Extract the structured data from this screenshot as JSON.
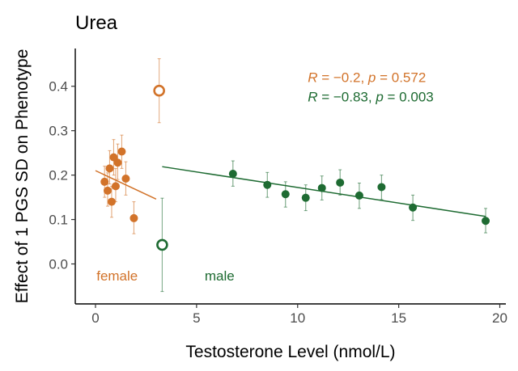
{
  "chart_data": {
    "type": "scatter",
    "title": "Urea",
    "xlabel": "Testosterone Level (nmol/L)",
    "ylabel": "Effect of 1 PGS SD on Phenotype",
    "xlim": [
      -1,
      20.3
    ],
    "ylim": [
      -0.09,
      0.485
    ],
    "x_ticks": [
      0,
      5,
      10,
      15,
      20
    ],
    "x_tick_labels": [
      "0",
      "5",
      "10",
      "15",
      "20"
    ],
    "y_ticks": [
      0.0,
      0.1,
      0.2,
      0.3,
      0.4
    ],
    "y_tick_labels": [
      "0.0",
      "0.1",
      "0.2",
      "0.3",
      "0.4"
    ],
    "grid": false,
    "series": [
      {
        "name": "female",
        "color": "#D2732A",
        "points": [
          {
            "x": 0.45,
            "y": 0.185,
            "lo": 0.15,
            "hi": 0.22
          },
          {
            "x": 0.6,
            "y": 0.165,
            "lo": 0.13,
            "hi": 0.205
          },
          {
            "x": 0.7,
            "y": 0.215,
            "lo": 0.18,
            "hi": 0.255
          },
          {
            "x": 0.8,
            "y": 0.14,
            "lo": 0.105,
            "hi": 0.175
          },
          {
            "x": 0.9,
            "y": 0.24,
            "lo": 0.2,
            "hi": 0.28
          },
          {
            "x": 1.0,
            "y": 0.175,
            "lo": 0.14,
            "hi": 0.215
          },
          {
            "x": 1.1,
            "y": 0.228,
            "lo": 0.19,
            "hi": 0.27
          },
          {
            "x": 1.3,
            "y": 0.253,
            "lo": 0.215,
            "hi": 0.29
          },
          {
            "x": 1.5,
            "y": 0.192,
            "lo": 0.155,
            "hi": 0.23
          },
          {
            "x": 1.9,
            "y": 0.103,
            "lo": 0.068,
            "hi": 0.14
          },
          {
            "x": 3.15,
            "y": 0.39,
            "lo": 0.318,
            "hi": 0.462,
            "hollow": true
          }
        ],
        "fit": {
          "x": [
            0,
            3.0
          ],
          "y": [
            0.21,
            0.146
          ]
        },
        "label": "female",
        "annotation": {
          "r": "−0.2",
          "p": "0.572"
        }
      },
      {
        "name": "male",
        "color": "#1E6B32",
        "points": [
          {
            "x": 3.3,
            "y": 0.043,
            "lo": -0.062,
            "hi": 0.148,
            "hollow": true
          },
          {
            "x": 6.8,
            "y": 0.203,
            "lo": 0.175,
            "hi": 0.232
          },
          {
            "x": 8.5,
            "y": 0.178,
            "lo": 0.15,
            "hi": 0.206
          },
          {
            "x": 9.4,
            "y": 0.157,
            "lo": 0.128,
            "hi": 0.185
          },
          {
            "x": 10.4,
            "y": 0.149,
            "lo": 0.12,
            "hi": 0.178
          },
          {
            "x": 11.2,
            "y": 0.171,
            "lo": 0.144,
            "hi": 0.198
          },
          {
            "x": 12.1,
            "y": 0.183,
            "lo": 0.155,
            "hi": 0.212
          },
          {
            "x": 13.05,
            "y": 0.154,
            "lo": 0.125,
            "hi": 0.182
          },
          {
            "x": 14.15,
            "y": 0.173,
            "lo": 0.145,
            "hi": 0.2
          },
          {
            "x": 15.7,
            "y": 0.127,
            "lo": 0.098,
            "hi": 0.155
          },
          {
            "x": 19.3,
            "y": 0.097,
            "lo": 0.07,
            "hi": 0.125
          }
        ],
        "fit": {
          "x": [
            3.3,
            19.3
          ],
          "y": [
            0.219,
            0.107
          ]
        },
        "label": "male",
        "annotation": {
          "r": "−0.83",
          "p": "0.003"
        }
      }
    ]
  },
  "annotations": {
    "r_symbol": "R",
    "p_symbol": "p",
    "equals": " = ",
    "separator": ", "
  }
}
